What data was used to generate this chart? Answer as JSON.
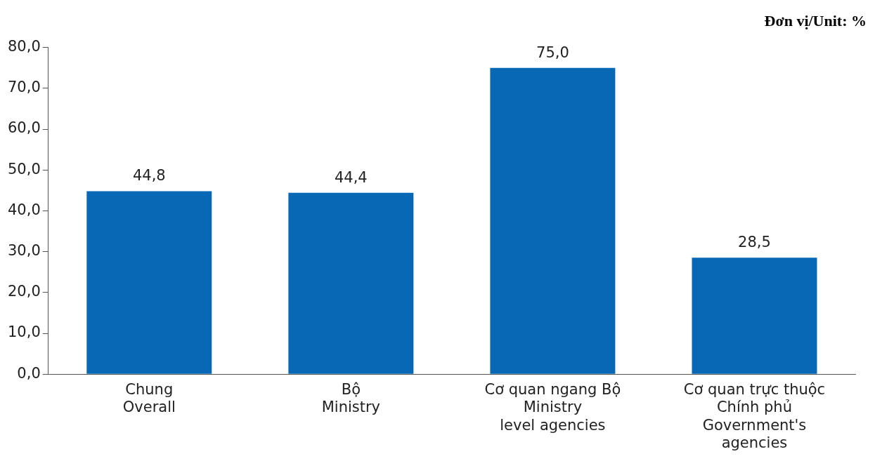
{
  "chart_data": {
    "type": "bar",
    "ylabel": "Đơn vị/Unit: %",
    "categories": [
      "Chung\nOverall",
      "Bộ\nMinistry",
      "Cơ quan ngang Bộ\nMinistry\nlevel agencies",
      "Cơ quan trực thuộc\nChính phủ\nGovernment's\nagencies"
    ],
    "values": [
      44.8,
      44.4,
      75.0,
      28.5
    ],
    "value_labels": [
      "44,8",
      "44,4",
      "75,0",
      "28,5"
    ],
    "color": "#0868b5",
    "ylim": [
      0,
      80
    ],
    "yticks": [
      {
        "value": 0,
        "label": "0,0"
      },
      {
        "value": 10,
        "label": "10,0"
      },
      {
        "value": 20,
        "label": "20,0"
      },
      {
        "value": 30,
        "label": "30,0"
      },
      {
        "value": 40,
        "label": "40,0"
      },
      {
        "value": 50,
        "label": "50,0"
      },
      {
        "value": 60,
        "label": "60,0"
      },
      {
        "value": 70,
        "label": "70,0"
      },
      {
        "value": 80,
        "label": "80,0"
      }
    ],
    "grid": false,
    "legend": false
  }
}
